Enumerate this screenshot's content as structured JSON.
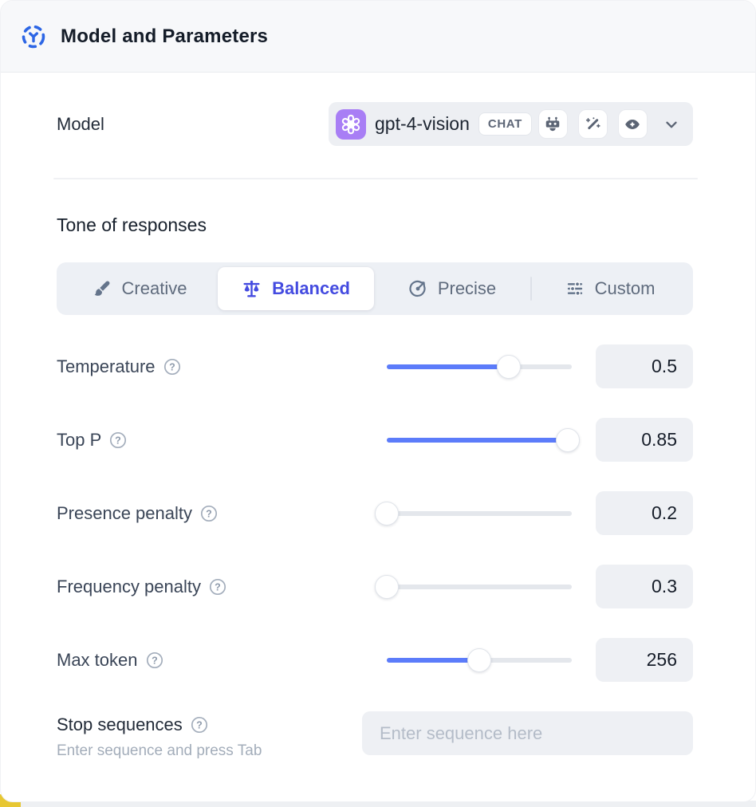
{
  "header": {
    "title": "Model and Parameters"
  },
  "model": {
    "label": "Model",
    "value": "gpt-4-vision",
    "type_badge": "CHAT",
    "provider_icon": "openai-logo",
    "capability_icons": [
      "robot-icon",
      "magic-wand-icon",
      "vision-eye-icon"
    ]
  },
  "tone": {
    "label": "Tone of responses",
    "selected": "Balanced",
    "options": [
      {
        "label": "Creative",
        "icon": "paintbrush-icon",
        "selected": false
      },
      {
        "label": "Balanced",
        "icon": "balance-scale-icon",
        "selected": true
      },
      {
        "label": "Precise",
        "icon": "target-arrow-icon",
        "selected": false
      },
      {
        "label": "Custom",
        "icon": "sliders-icon",
        "selected": false
      }
    ]
  },
  "parameters": [
    {
      "label": "Temperature",
      "value": "0.5",
      "fill": 0.66
    },
    {
      "label": "Top P",
      "value": "0.85",
      "fill": 0.98
    },
    {
      "label": "Presence penalty",
      "value": "0.2",
      "fill": 0.0
    },
    {
      "label": "Frequency penalty",
      "value": "0.3",
      "fill": 0.0
    },
    {
      "label": "Max token",
      "value": "256",
      "fill": 0.5
    }
  ],
  "stop_sequences": {
    "label": "Stop sequences",
    "helper": "Enter sequence and press Tab",
    "placeholder": "Enter sequence here"
  },
  "colors": {
    "accent_slider_blue": "#5c7cfa",
    "selected_tone_indigo": "#444be0",
    "header_icon_blue": "#2d66e5",
    "openai_badge_purple": "#a87ef5",
    "panel_gray": "#eef0f4",
    "yellow_corner": "#e7c733"
  }
}
